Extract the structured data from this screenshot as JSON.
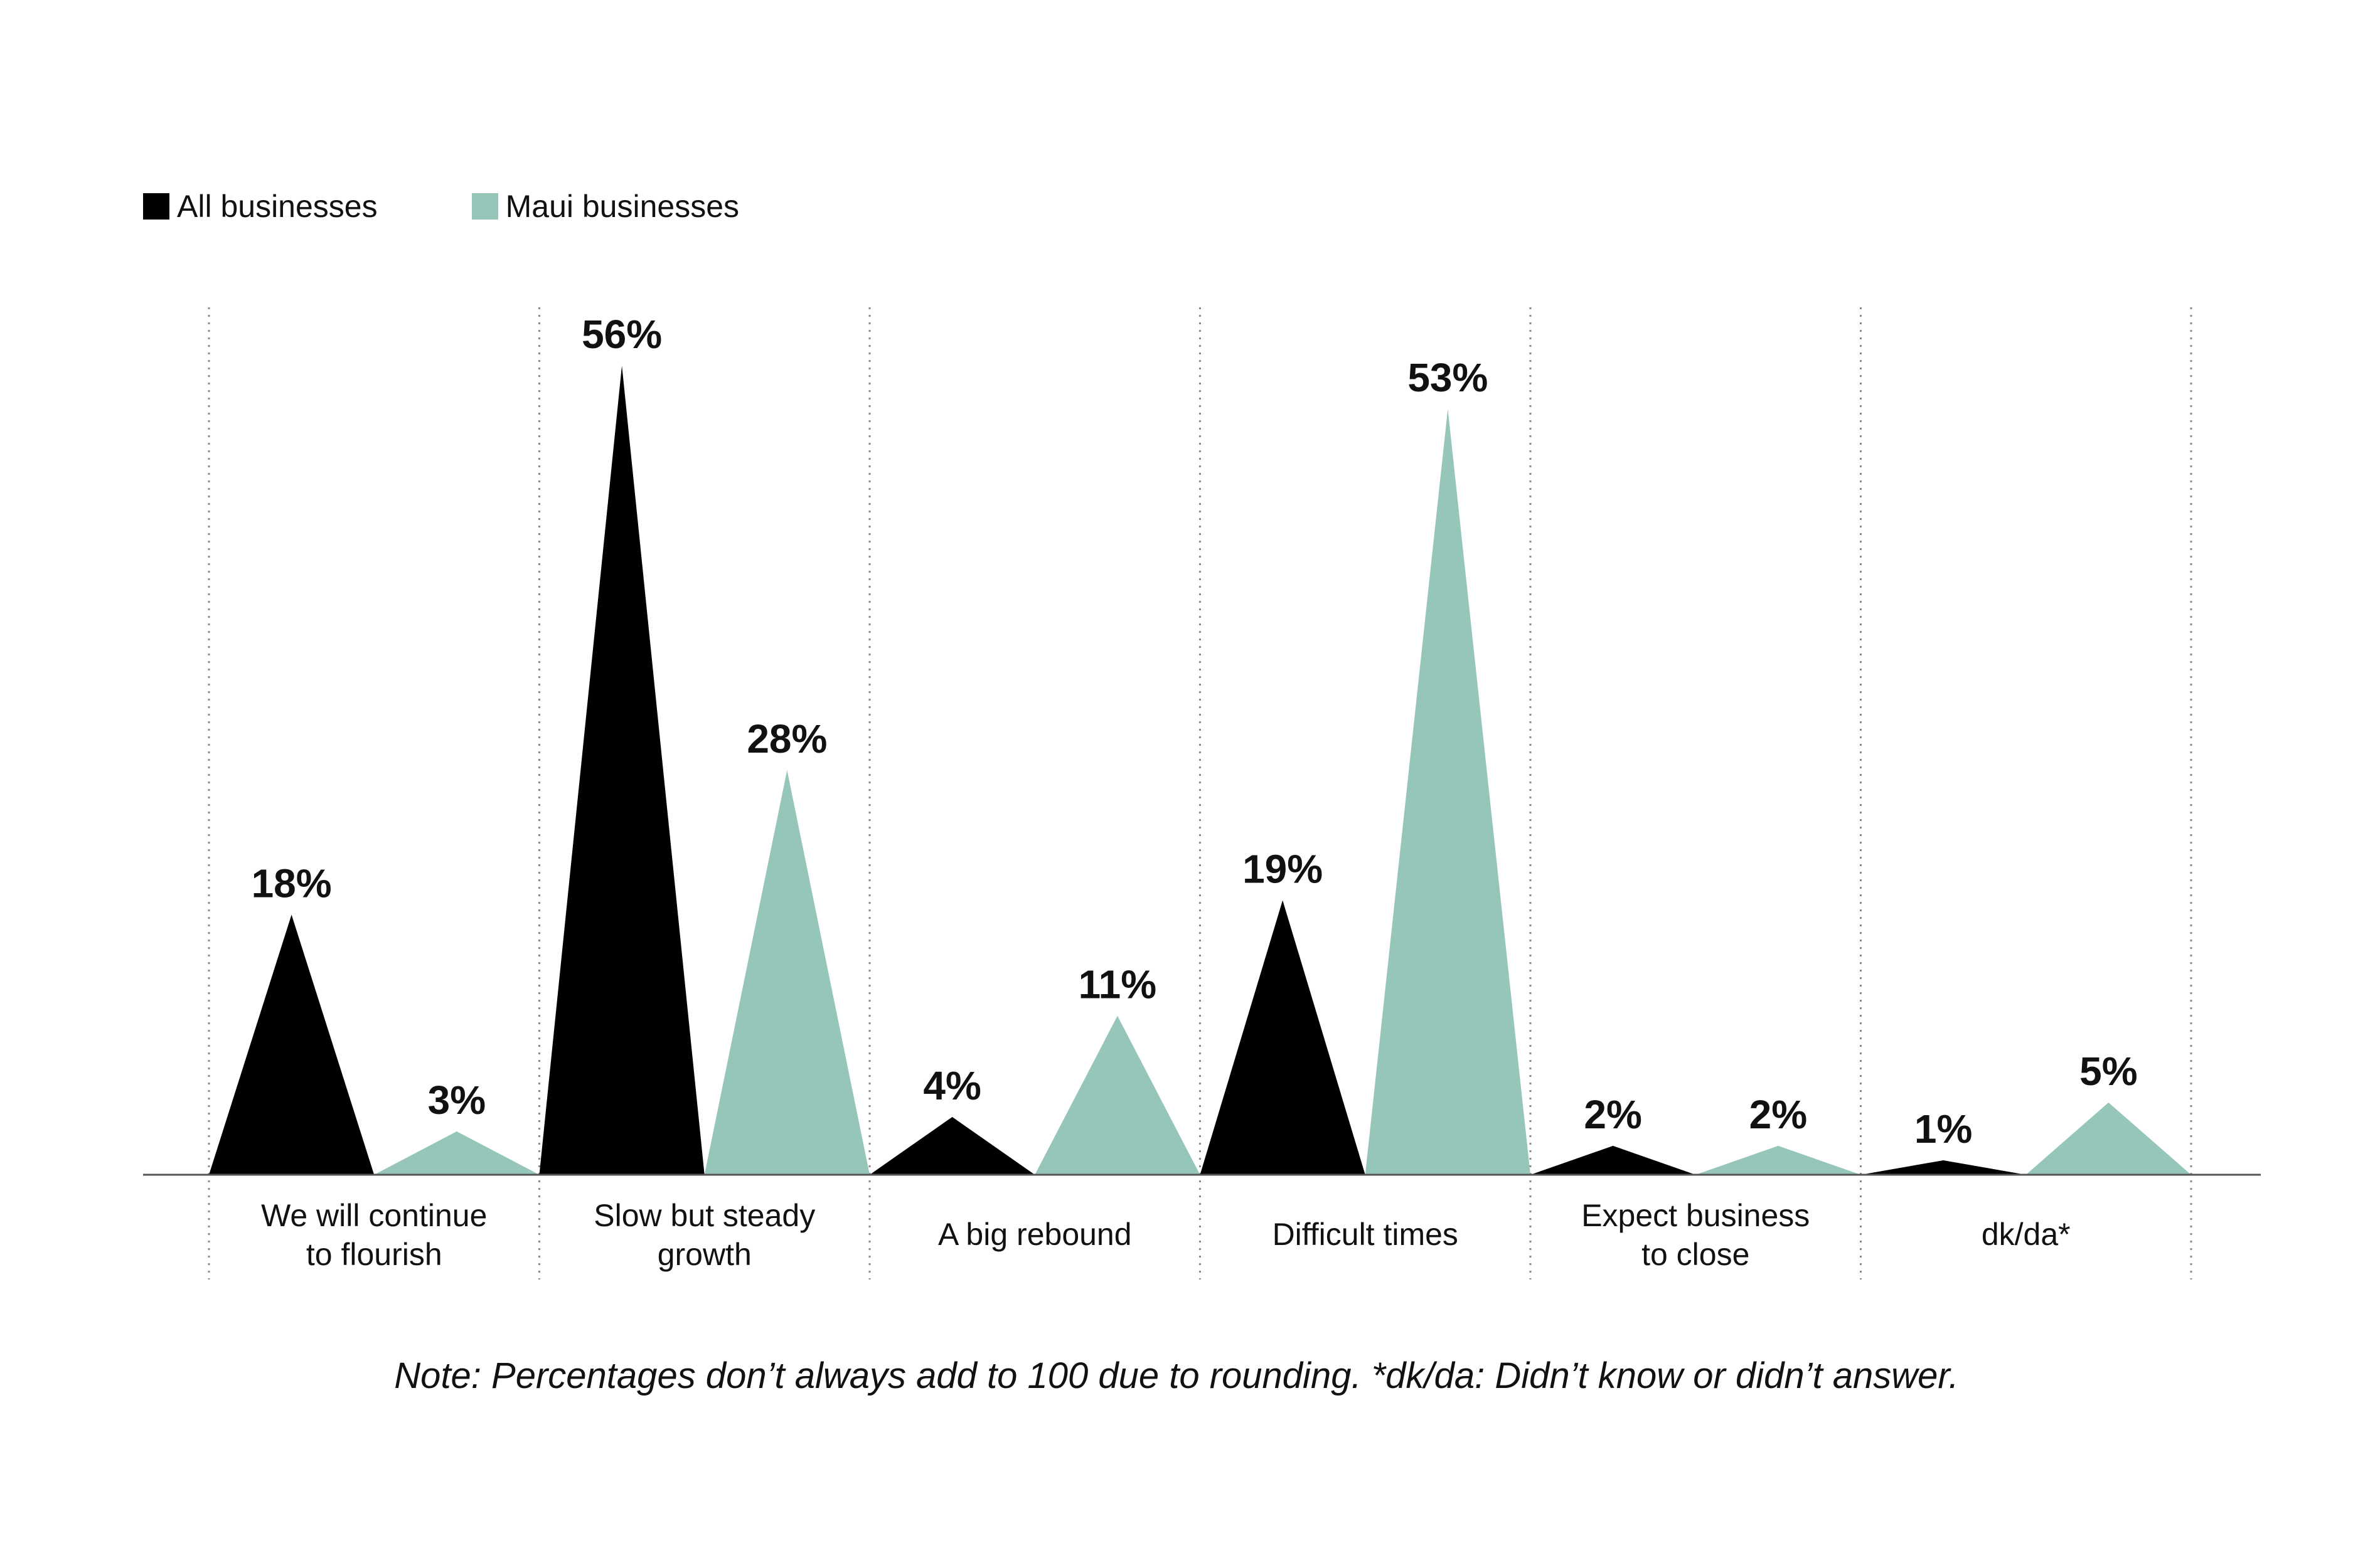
{
  "colors": {
    "all": "#000000",
    "maui": "#96c6b9",
    "gridline": "#8a8a8a",
    "baseline": "#555555"
  },
  "legend": [
    {
      "label": "All businesses",
      "color": "#000000"
    },
    {
      "label": "Maui businesses",
      "color": "#96c6b9"
    }
  ],
  "note": "Note: Percentages don’t always add to 100 due to rounding. *dk/da: Didn’t know or didn’t answer.",
  "chart_data": {
    "type": "area",
    "mark_shape": "triangle",
    "legend_position": "top-left",
    "grid": "vertical dotted separators",
    "ylim": [
      0,
      56
    ],
    "categories": [
      [
        "We will continue",
        "to flourish"
      ],
      [
        "Slow but steady",
        "growth"
      ],
      [
        "A big rebound"
      ],
      [
        "Difficult times"
      ],
      [
        "Expect business",
        "to close"
      ],
      [
        "dk/da*"
      ]
    ],
    "series": [
      {
        "name": "All businesses",
        "values": [
          18,
          56,
          4,
          19,
          2,
          1
        ],
        "labels": [
          "18%",
          "56%",
          "4%",
          "19%",
          "2%",
          "1%"
        ]
      },
      {
        "name": "Maui businesses",
        "values": [
          3,
          28,
          11,
          53,
          2,
          5
        ],
        "labels": [
          "3%",
          "28%",
          "11%",
          "53%",
          "2%",
          "5%"
        ]
      }
    ]
  }
}
